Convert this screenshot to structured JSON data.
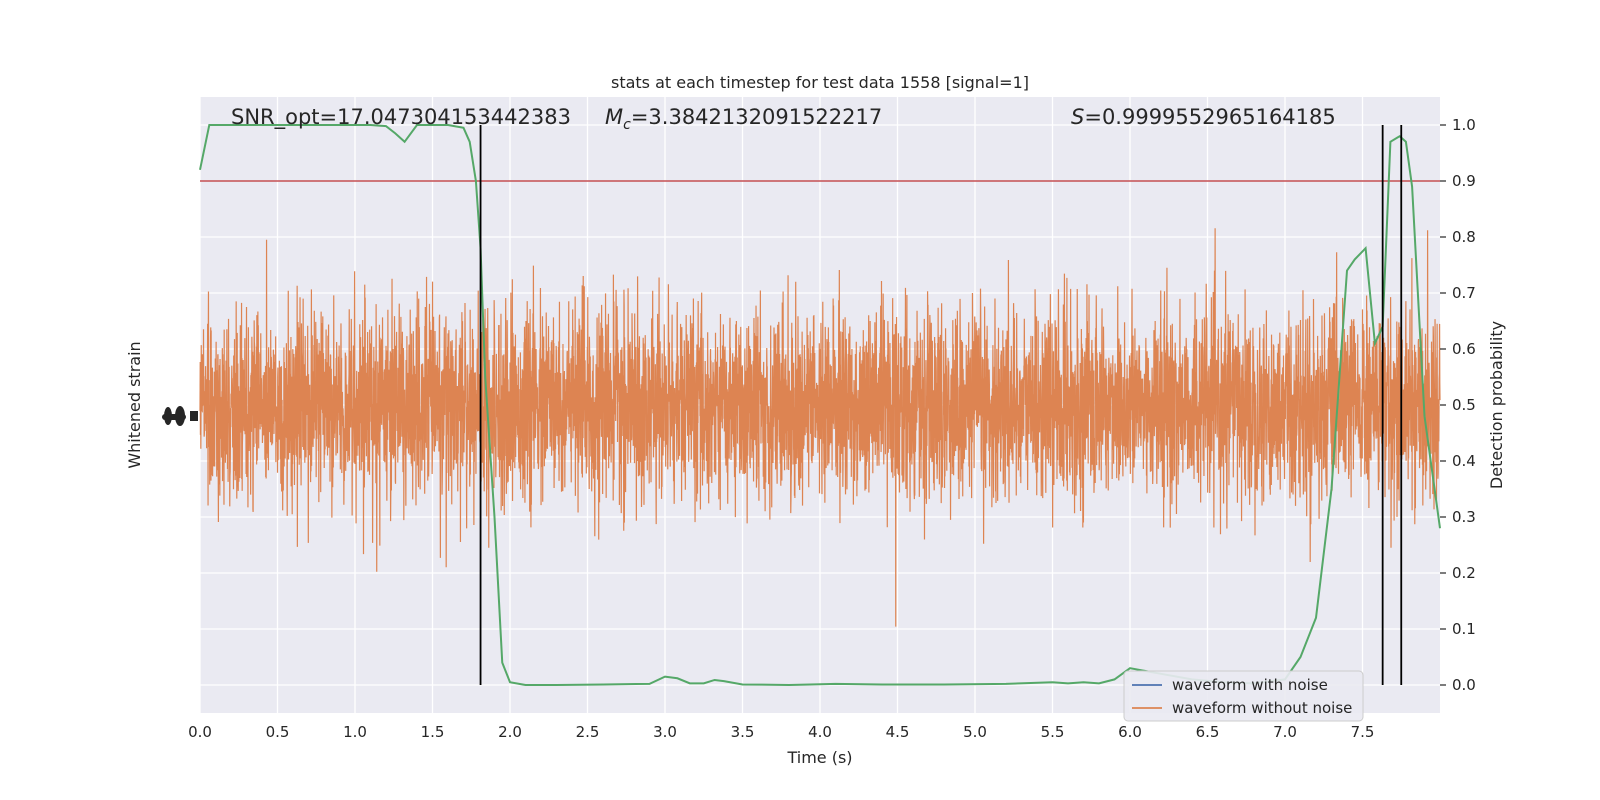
{
  "chart_data": {
    "type": "line",
    "title": "stats at each timestep for test data 1558 [signal=1]",
    "xlabel": "Time (s)",
    "ylabel_left": "Whitened strain",
    "ylabel_right": "Detection probability",
    "xlim": [
      0,
      8
    ],
    "ylim_right": [
      -0.05,
      1.05
    ],
    "x_ticks": [
      0.0,
      0.5,
      1.0,
      1.5,
      2.0,
      2.5,
      3.0,
      3.5,
      4.0,
      4.5,
      5.0,
      5.5,
      6.0,
      6.5,
      7.0,
      7.5
    ],
    "x_tick_labels": [
      "0.0",
      "0.5",
      "1.0",
      "1.5",
      "2.0",
      "2.5",
      "3.0",
      "3.5",
      "4.0",
      "4.5",
      "5.0",
      "5.5",
      "6.0",
      "6.5",
      "7.0",
      "7.5"
    ],
    "y_right_ticks": [
      0.0,
      0.1,
      0.2,
      0.3,
      0.4,
      0.5,
      0.6,
      0.7,
      0.8,
      0.9,
      1.0
    ],
    "y_right_tick_labels": [
      "0.0",
      "0.1",
      "0.2",
      "0.3",
      "0.4",
      "0.5",
      "0.6",
      "0.7",
      "0.8",
      "0.9",
      "1.0"
    ],
    "grid": true,
    "legend_position": "lower-right",
    "annotations": {
      "snr": "SNR_opt=17.047304153442383",
      "mc_symbol": "M",
      "mc_sub": "c",
      "mc_value": "=3.3842132091522217",
      "s_symbol": "S",
      "s_value": "=0.9999552965164185"
    },
    "threshold": {
      "value": 0.9,
      "color": "#c44e52"
    },
    "vlines_x": [
      1.81,
      7.63,
      7.75
    ],
    "series": [
      {
        "name": "waveform with noise",
        "color": "#4c72b0"
      },
      {
        "name": "waveform without noise",
        "color": "#dd8452"
      }
    ],
    "strain_style": {
      "color": "#dd8452",
      "center": 0.5,
      "half_width_typical": 0.15,
      "seed": 1558
    },
    "detection_probability": {
      "color": "#55a868",
      "x": [
        0.0,
        0.06,
        0.2,
        0.4,
        0.6,
        0.8,
        1.0,
        1.1,
        1.2,
        1.26,
        1.32,
        1.4,
        1.5,
        1.6,
        1.7,
        1.74,
        1.78,
        1.81,
        1.84,
        1.9,
        1.95,
        2.0,
        2.1,
        2.3,
        2.6,
        2.9,
        3.0,
        3.08,
        3.16,
        3.25,
        3.32,
        3.38,
        3.5,
        3.8,
        4.1,
        4.4,
        4.8,
        5.2,
        5.5,
        5.6,
        5.7,
        5.8,
        5.9,
        6.0,
        6.2,
        6.4,
        6.6,
        6.8,
        7.0,
        7.1,
        7.2,
        7.3,
        7.4,
        7.45,
        7.52,
        7.58,
        7.63,
        7.68,
        7.74,
        7.78,
        7.82,
        7.9,
        8.0
      ],
      "y": [
        0.92,
        1.0,
        1.0,
        1.0,
        1.0,
        1.0,
        1.0,
        1.0,
        0.998,
        0.985,
        0.97,
        1.0,
        1.0,
        1.0,
        0.995,
        0.97,
        0.9,
        0.78,
        0.55,
        0.3,
        0.04,
        0.005,
        0.0,
        0.0,
        0.001,
        0.002,
        0.015,
        0.012,
        0.003,
        0.003,
        0.009,
        0.007,
        0.001,
        0.0,
        0.002,
        0.001,
        0.001,
        0.002,
        0.005,
        0.003,
        0.005,
        0.003,
        0.01,
        0.03,
        0.02,
        0.01,
        0.005,
        0.003,
        0.01,
        0.05,
        0.12,
        0.35,
        0.74,
        0.76,
        0.78,
        0.61,
        0.64,
        0.97,
        0.98,
        0.97,
        0.89,
        0.48,
        0.28
      ]
    }
  }
}
